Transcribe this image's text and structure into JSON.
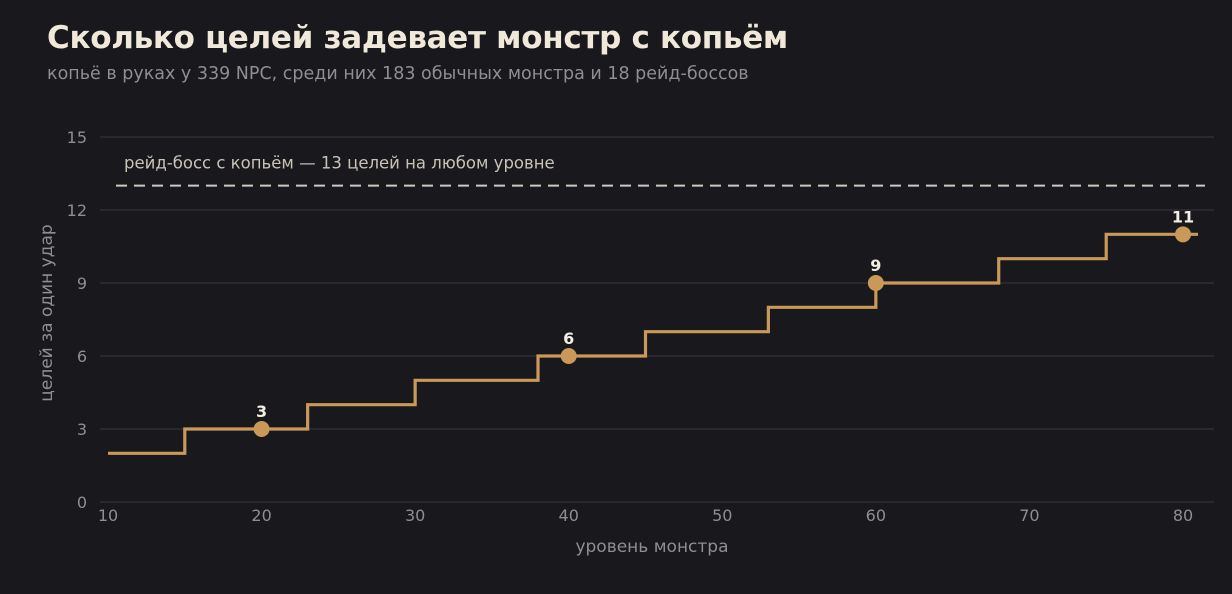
{
  "title": "Сколько целей задевает монстр с копьём",
  "subtitle": "копьё в руках у 339 NPC, среди них 183 обычных монстра и 18 рейд-боссов",
  "colors": {
    "background": "#18181d",
    "line": "#c9995a",
    "reference_line": "#cfcac0",
    "grid": "#2e2e34"
  },
  "chart_data": {
    "type": "line",
    "step": true,
    "xlabel": "уровень монстра",
    "ylabel": "целей за один удар",
    "xlim": [
      10,
      81
    ],
    "ylim": [
      0,
      15
    ],
    "x_ticks": [
      10,
      20,
      30,
      40,
      50,
      60,
      70,
      80
    ],
    "y_ticks": [
      0,
      3,
      6,
      9,
      12,
      15
    ],
    "grid": "horizontal",
    "steps": [
      {
        "x_from": 10,
        "x_to": 15,
        "value": 2
      },
      {
        "x_from": 15,
        "x_to": 23,
        "value": 3
      },
      {
        "x_from": 23,
        "x_to": 30,
        "value": 4
      },
      {
        "x_from": 30,
        "x_to": 38,
        "value": 5
      },
      {
        "x_from": 38,
        "x_to": 45,
        "value": 6
      },
      {
        "x_from": 45,
        "x_to": 53,
        "value": 7
      },
      {
        "x_from": 53,
        "x_to": 60,
        "value": 8
      },
      {
        "x_from": 60,
        "x_to": 68,
        "value": 9
      },
      {
        "x_from": 68,
        "x_to": 75,
        "value": 10
      },
      {
        "x_from": 75,
        "x_to": 81,
        "value": 11
      }
    ],
    "highlighted_points": [
      {
        "x": 20,
        "y": 3,
        "label": "3"
      },
      {
        "x": 40,
        "y": 6,
        "label": "6"
      },
      {
        "x": 60,
        "y": 9,
        "label": "9"
      },
      {
        "x": 80,
        "y": 11,
        "label": "11"
      }
    ],
    "reference_line": {
      "y": 13,
      "style": "dashed",
      "label": "рейд-босс с копьём — 13 целей на любом уровне"
    }
  }
}
